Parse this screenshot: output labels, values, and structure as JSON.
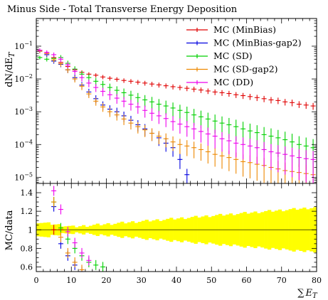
{
  "chart_data": [
    {
      "type": "scatter",
      "title": "Minus Side - Total Transverse Energy Deposition",
      "ylabel": "dN/dE_T",
      "yscale": "log",
      "ylim": [
        6.5e-06,
        0.7
      ],
      "xlim": [
        0,
        80
      ],
      "ytick_labels": [
        "10^{-5}",
        "10^{-4}",
        "10^{-3}",
        "10^{-2}",
        "10^{-1}"
      ],
      "legend_position": "top-right",
      "series": [
        {
          "name": "MC (MinBias)",
          "color": "#e00000",
          "x": [
            1,
            3,
            5,
            7,
            9,
            11,
            13,
            15,
            17,
            19,
            21,
            23,
            25,
            27,
            29,
            31,
            33,
            35,
            37,
            39,
            41,
            43,
            45,
            47,
            49,
            51,
            53,
            55,
            57,
            59,
            61,
            63,
            65,
            67,
            69,
            71,
            73,
            75,
            77,
            79
          ],
          "values": [
            0.075,
            0.06,
            0.045,
            0.032,
            0.024,
            0.019,
            0.016,
            0.014,
            0.013,
            0.0115,
            0.0105,
            0.0098,
            0.009,
            0.0085,
            0.008,
            0.0075,
            0.007,
            0.0066,
            0.0062,
            0.0058,
            0.0055,
            0.0052,
            0.0049,
            0.0046,
            0.0043,
            0.004,
            0.0038,
            0.0036,
            0.0033,
            0.0031,
            0.0029,
            0.0027,
            0.0025,
            0.0023,
            0.0022,
            0.002,
            0.0019,
            0.0017,
            0.0016,
            0.0015
          ]
        },
        {
          "name": "MC (MinBias-gap2)",
          "color": "#0000e0",
          "x": [
            1,
            3,
            5,
            7,
            9,
            11,
            13,
            15,
            17,
            19,
            21,
            23,
            25,
            27,
            29,
            31,
            33,
            35,
            37,
            39,
            41,
            43
          ],
          "values": [
            0.07,
            0.055,
            0.035,
            0.028,
            0.019,
            0.011,
            0.0065,
            0.004,
            0.0025,
            0.0016,
            0.0012,
            0.001,
            0.00075,
            0.00055,
            0.0004,
            0.0003,
            0.00022,
            0.00016,
            0.00011,
            8e-05,
            3.5e-05,
            1.2e-05
          ]
        },
        {
          "name": "MC (SD)",
          "color": "#00d000",
          "x": [
            1,
            3,
            5,
            7,
            9,
            11,
            13,
            15,
            17,
            19,
            21,
            23,
            25,
            27,
            29,
            31,
            33,
            35,
            37,
            39,
            41,
            43,
            45,
            47,
            49,
            51,
            53,
            55,
            57,
            59,
            61,
            63,
            65,
            67,
            69,
            71,
            73,
            75,
            77,
            79
          ],
          "values": [
            0.045,
            0.04,
            0.042,
            0.045,
            0.03,
            0.02,
            0.014,
            0.011,
            0.0085,
            0.0068,
            0.0055,
            0.0045,
            0.0038,
            0.0032,
            0.0027,
            0.0023,
            0.002,
            0.0017,
            0.0015,
            0.0013,
            0.0011,
            0.00095,
            0.0008,
            0.0007,
            0.0006,
            0.00052,
            0.00045,
            0.0004,
            0.00035,
            0.0003,
            0.00026,
            0.00023,
            0.0002,
            0.00018,
            0.00016,
            0.00014,
            0.00012,
            0.0001,
            9e-05,
            8e-05
          ]
        },
        {
          "name": "MC (SD-gap2)",
          "color": "#ee8800",
          "x": [
            1,
            3,
            5,
            7,
            9,
            11,
            13,
            15,
            17,
            19,
            21,
            23,
            25,
            27,
            29,
            31,
            33,
            35,
            37,
            39,
            41,
            43,
            45,
            47,
            49,
            51,
            53,
            55,
            57,
            59,
            61,
            63,
            65,
            67,
            69,
            71,
            73,
            75,
            77,
            79
          ],
          "values": [
            0.07,
            0.06,
            0.038,
            0.029,
            0.019,
            0.01,
            0.006,
            0.0035,
            0.0021,
            0.0014,
            0.001,
            0.0008,
            0.0006,
            0.00045,
            0.00035,
            0.00028,
            0.00022,
            0.00018,
            0.00015,
            0.00012,
            0.0001,
            9e-05,
            8e-05,
            7e-05,
            6e-05,
            5e-05,
            4.5e-05,
            4e-05,
            3.5e-05,
            3e-05,
            2.8e-05,
            2.5e-05,
            2.3e-05,
            2e-05,
            1.8e-05,
            1.6e-05,
            1.5e-05,
            1.4e-05,
            1.3e-05,
            1.2e-05
          ]
        },
        {
          "name": "MC (DD)",
          "color": "#ee00ee",
          "x": [
            1,
            3,
            5,
            7,
            9,
            11,
            13,
            15,
            17,
            19,
            21,
            23,
            25,
            27,
            29,
            31,
            33,
            35,
            37,
            39,
            41,
            43,
            45,
            47,
            49,
            51,
            53,
            55,
            57,
            59,
            61,
            63,
            65,
            67,
            69,
            71,
            73,
            75,
            77,
            79
          ],
          "values": [
            0.075,
            0.065,
            0.055,
            0.04,
            0.027,
            0.017,
            0.011,
            0.0075,
            0.0055,
            0.0042,
            0.0033,
            0.0026,
            0.0021,
            0.0017,
            0.0014,
            0.0011,
            0.0009,
            0.00075,
            0.00062,
            0.0005,
            0.00042,
            0.00035,
            0.0003,
            0.00025,
            0.00021,
            0.00018,
            0.00015,
            0.00013,
            0.00011,
            0.0001,
            9e-05,
            8e-05,
            7e-05,
            6e-05,
            5.5e-05,
            5e-05,
            4.5e-05,
            4e-05,
            3.7e-05,
            3.5e-05
          ]
        }
      ]
    },
    {
      "type": "scatter",
      "ylabel": "MC/data",
      "xlabel": "∑E_T",
      "xlim": [
        0,
        80
      ],
      "ylim": [
        0.55,
        1.5
      ],
      "yticks": [
        0.6,
        0.8,
        1,
        1.2,
        1.4
      ],
      "xticks": [
        0,
        10,
        20,
        30,
        40,
        50,
        60,
        70,
        80
      ],
      "reference_line": 1,
      "uncertainty_band": {
        "color": "#ffff00",
        "x": [
          0,
          10,
          20,
          30,
          40,
          50,
          60,
          70,
          80
        ],
        "half_width": [
          0.07,
          0.02,
          0.05,
          0.08,
          0.11,
          0.14,
          0.17,
          0.2,
          0.23
        ]
      },
      "series": [
        {
          "name": "MC (MinBias)",
          "color": "#e00000",
          "x": [
            5,
            7
          ],
          "values": [
            1.0,
            1.0
          ]
        },
        {
          "name": "MC (MinBias-gap2)",
          "color": "#0000e0",
          "x": [
            5,
            7,
            9,
            11,
            13
          ],
          "values": [
            1.25,
            0.85,
            0.72,
            0.62,
            0.55
          ]
        },
        {
          "name": "MC (SD)",
          "color": "#00d000",
          "x": [
            5,
            7,
            9,
            11,
            13,
            15,
            17,
            19
          ],
          "values": [
            1.3,
            1.02,
            0.9,
            0.8,
            0.72,
            0.65,
            0.62,
            0.6
          ]
        },
        {
          "name": "MC (SD-gap2)",
          "color": "#ee8800",
          "x": [
            5,
            7,
            9,
            11,
            13
          ],
          "values": [
            1.3,
            0.92,
            0.75,
            0.65,
            0.57
          ]
        },
        {
          "name": "MC (DD)",
          "color": "#ee00ee",
          "x": [
            5,
            7,
            9,
            11,
            13,
            15
          ],
          "values": [
            1.42,
            1.22,
            0.98,
            0.86,
            0.75,
            0.67
          ]
        }
      ]
    }
  ]
}
